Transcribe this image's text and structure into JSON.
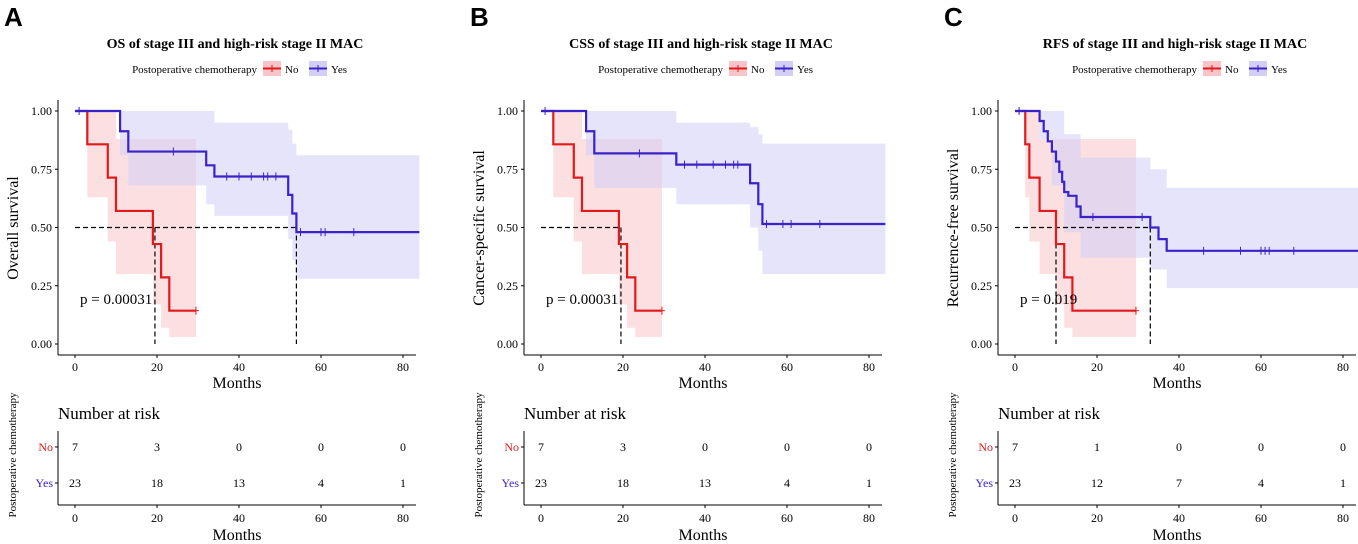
{
  "colors": {
    "no": "#e31a1c",
    "yes": "#3a22c9",
    "no_band": "#f8c4c8",
    "yes_band": "#d2cef6"
  },
  "chart_data": [
    {
      "type": "line",
      "subtype": "kaplan-meier",
      "panel_label": "A",
      "title": "OS of stage III and high-risk stage II MAC",
      "legend_title": "Postoperative chemotherapy",
      "legend_labels": [
        "No",
        "Yes"
      ],
      "xlabel": "Months",
      "ylabel": "Overall survival",
      "xlim": [
        0,
        84
      ],
      "ylim": [
        0,
        1
      ],
      "xticks": [
        "0",
        "20",
        "40",
        "60",
        "80"
      ],
      "yticks": [
        "0.00",
        "0.25",
        "0.50",
        "0.75",
        "1.00"
      ],
      "p_value": "p = 0.00031",
      "medians": [
        19.5,
        54
      ],
      "series": [
        {
          "name": "No",
          "steps": [
            [
              0,
              1
            ],
            [
              3,
              0.857
            ],
            [
              8,
              0.714
            ],
            [
              10,
              0.571
            ],
            [
              19,
              0.429
            ],
            [
              21,
              0.286
            ],
            [
              23,
              0.143
            ],
            [
              29.5,
              0.143
            ]
          ],
          "censors": [
            [
              29.5,
              0.143
            ]
          ],
          "ci_steps": [
            [
              0,
              1,
              1
            ],
            [
              3,
              0.63,
              1
            ],
            [
              8,
              0.44,
              1
            ],
            [
              10,
              0.3,
              0.88
            ],
            [
              19,
              0.17,
              0.88
            ],
            [
              21,
              0.07,
              0.88
            ],
            [
              23,
              0.03,
              0.88
            ],
            [
              29.5,
              0.03,
              0.88
            ]
          ]
        },
        {
          "name": "Yes",
          "steps": [
            [
              0,
              1
            ],
            [
              11,
              0.913
            ],
            [
              13,
              0.826
            ],
            [
              32,
              0.767
            ],
            [
              34,
              0.719
            ],
            [
              52,
              0.64
            ],
            [
              53,
              0.56
            ],
            [
              54,
              0.48
            ],
            [
              84,
              0.48
            ]
          ],
          "censors": [
            [
              1,
              1
            ],
            [
              24,
              0.826
            ],
            [
              37,
              0.719
            ],
            [
              40,
              0.719
            ],
            [
              43,
              0.719
            ],
            [
              46,
              0.719
            ],
            [
              47,
              0.719
            ],
            [
              49,
              0.719
            ],
            [
              55,
              0.48
            ],
            [
              60,
              0.48
            ],
            [
              61,
              0.48
            ],
            [
              68,
              0.48
            ]
          ],
          "ci_steps": [
            [
              0,
              1,
              1
            ],
            [
              11,
              0.81,
              1
            ],
            [
              13,
              0.68,
              1
            ],
            [
              32,
              0.6,
              1
            ],
            [
              34,
              0.55,
              0.95
            ],
            [
              52,
              0.45,
              0.92
            ],
            [
              53,
              0.36,
              0.86
            ],
            [
              54,
              0.28,
              0.81
            ],
            [
              84,
              0.28,
              0.81
            ]
          ]
        }
      ],
      "risk_table": {
        "title": "Number at risk",
        "ylabel": "Postoperative chemotherapy",
        "xlabel": "Months",
        "groups": [
          "No",
          "Yes"
        ],
        "times": [
          "0",
          "20",
          "40",
          "60",
          "80"
        ],
        "rows": [
          [
            "7",
            "3",
            "0",
            "0",
            "0"
          ],
          [
            "23",
            "18",
            "13",
            "4",
            "1"
          ]
        ]
      }
    },
    {
      "type": "line",
      "subtype": "kaplan-meier",
      "panel_label": "B",
      "title": "CSS of stage III and high-risk stage II MAC",
      "legend_title": "Postoperative chemotherapy",
      "legend_labels": [
        "No",
        "Yes"
      ],
      "xlabel": "Months",
      "ylabel": "Cancer-specific survival",
      "xlim": [
        0,
        84
      ],
      "ylim": [
        0,
        1
      ],
      "xticks": [
        "0",
        "20",
        "40",
        "60",
        "80"
      ],
      "yticks": [
        "0.00",
        "0.25",
        "0.50",
        "0.75",
        "1.00"
      ],
      "p_value": "p = 0.00031",
      "medians": [
        19.5
      ],
      "series": [
        {
          "name": "No",
          "steps": [
            [
              0,
              1
            ],
            [
              3,
              0.857
            ],
            [
              8,
              0.714
            ],
            [
              10,
              0.571
            ],
            [
              19,
              0.429
            ],
            [
              21,
              0.286
            ],
            [
              23,
              0.143
            ],
            [
              29.5,
              0.143
            ]
          ],
          "censors": [
            [
              29.5,
              0.143
            ]
          ],
          "ci_steps": [
            [
              0,
              1,
              1
            ],
            [
              3,
              0.63,
              1
            ],
            [
              8,
              0.44,
              1
            ],
            [
              10,
              0.3,
              0.88
            ],
            [
              19,
              0.17,
              0.88
            ],
            [
              21,
              0.07,
              0.88
            ],
            [
              23,
              0.03,
              0.88
            ],
            [
              29.5,
              0.03,
              0.88
            ]
          ]
        },
        {
          "name": "Yes",
          "steps": [
            [
              0,
              1
            ],
            [
              11,
              0.913
            ],
            [
              13,
              0.818
            ],
            [
              33,
              0.77
            ],
            [
              51,
              0.69
            ],
            [
              53,
              0.6
            ],
            [
              54,
              0.515
            ],
            [
              84,
              0.515
            ]
          ],
          "censors": [
            [
              1,
              1
            ],
            [
              24,
              0.818
            ],
            [
              35,
              0.77
            ],
            [
              38,
              0.77
            ],
            [
              42,
              0.77
            ],
            [
              45,
              0.77
            ],
            [
              47,
              0.77
            ],
            [
              48,
              0.77
            ],
            [
              55,
              0.515
            ],
            [
              59,
              0.515
            ],
            [
              61,
              0.515
            ],
            [
              68,
              0.515
            ]
          ],
          "ci_steps": [
            [
              0,
              1,
              1
            ],
            [
              11,
              0.81,
              1
            ],
            [
              13,
              0.67,
              1
            ],
            [
              33,
              0.6,
              0.95
            ],
            [
              51,
              0.5,
              0.93
            ],
            [
              53,
              0.4,
              0.9
            ],
            [
              54,
              0.3,
              0.86
            ],
            [
              84,
              0.3,
              0.86
            ]
          ]
        }
      ],
      "risk_table": {
        "title": "Number at risk",
        "ylabel": "Postoperative chemotherapy",
        "xlabel": "Months",
        "groups": [
          "No",
          "Yes"
        ],
        "times": [
          "0",
          "20",
          "40",
          "60",
          "80"
        ],
        "rows": [
          [
            "7",
            "3",
            "0",
            "0",
            "0"
          ],
          [
            "23",
            "18",
            "13",
            "4",
            "1"
          ]
        ]
      }
    },
    {
      "type": "line",
      "subtype": "kaplan-meier",
      "panel_label": "C",
      "title": "RFS of stage III and high-risk stage II MAC",
      "legend_title": "Postoperative chemotherapy",
      "legend_labels": [
        "No",
        "Yes"
      ],
      "xlabel": "Months",
      "ylabel": "Recurrence-free survival",
      "xlim": [
        0,
        84
      ],
      "ylim": [
        0,
        1
      ],
      "xticks": [
        "0",
        "20",
        "40",
        "60",
        "80"
      ],
      "yticks": [
        "0.00",
        "0.25",
        "0.50",
        "0.75",
        "1.00"
      ],
      "p_value": "p = 0.019",
      "medians": [
        10,
        33
      ],
      "series": [
        {
          "name": "No",
          "steps": [
            [
              0,
              1
            ],
            [
              2.5,
              0.857
            ],
            [
              3.5,
              0.714
            ],
            [
              6,
              0.571
            ],
            [
              10,
              0.429
            ],
            [
              12,
              0.286
            ],
            [
              14,
              0.143
            ],
            [
              29.5,
              0.143
            ]
          ],
          "censors": [
            [
              29.5,
              0.143
            ]
          ],
          "ci_steps": [
            [
              0,
              1,
              1
            ],
            [
              2.5,
              0.63,
              1
            ],
            [
              3.5,
              0.44,
              1
            ],
            [
              6,
              0.3,
              0.88
            ],
            [
              10,
              0.17,
              0.88
            ],
            [
              12,
              0.07,
              0.88
            ],
            [
              14,
              0.03,
              0.88
            ],
            [
              29.5,
              0.03,
              0.88
            ]
          ]
        },
        {
          "name": "Yes",
          "steps": [
            [
              0,
              1
            ],
            [
              6,
              0.957
            ],
            [
              7,
              0.913
            ],
            [
              8,
              0.87
            ],
            [
              9,
              0.826
            ],
            [
              10,
              0.783
            ],
            [
              10.8,
              0.739
            ],
            [
              11.5,
              0.696
            ],
            [
              12,
              0.652
            ],
            [
              13,
              0.636
            ],
            [
              15,
              0.59
            ],
            [
              16,
              0.545
            ],
            [
              33,
              0.5
            ],
            [
              35,
              0.45
            ],
            [
              37,
              0.4
            ],
            [
              84,
              0.4
            ]
          ],
          "censors": [
            [
              1,
              1
            ],
            [
              19,
              0.545
            ],
            [
              31,
              0.545
            ],
            [
              46,
              0.4
            ],
            [
              55,
              0.4
            ],
            [
              60,
              0.4
            ],
            [
              61,
              0.4
            ],
            [
              62,
              0.4
            ],
            [
              68,
              0.4
            ]
          ],
          "ci_steps": [
            [
              0,
              1,
              1
            ],
            [
              6,
              0.88,
              1
            ],
            [
              9,
              0.68,
              1
            ],
            [
              12,
              0.48,
              0.9
            ],
            [
              16,
              0.37,
              0.8
            ],
            [
              33,
              0.32,
              0.75
            ],
            [
              37,
              0.24,
              0.67
            ],
            [
              84,
              0.24,
              0.67
            ]
          ]
        }
      ],
      "risk_table": {
        "title": "Number at risk",
        "ylabel": "Postoperative chemotherapy",
        "xlabel": "Months",
        "groups": [
          "No",
          "Yes"
        ],
        "times": [
          "0",
          "20",
          "40",
          "60",
          "80"
        ],
        "rows": [
          [
            "7",
            "1",
            "0",
            "0",
            "0"
          ],
          [
            "23",
            "12",
            "7",
            "4",
            "1"
          ]
        ]
      }
    }
  ]
}
